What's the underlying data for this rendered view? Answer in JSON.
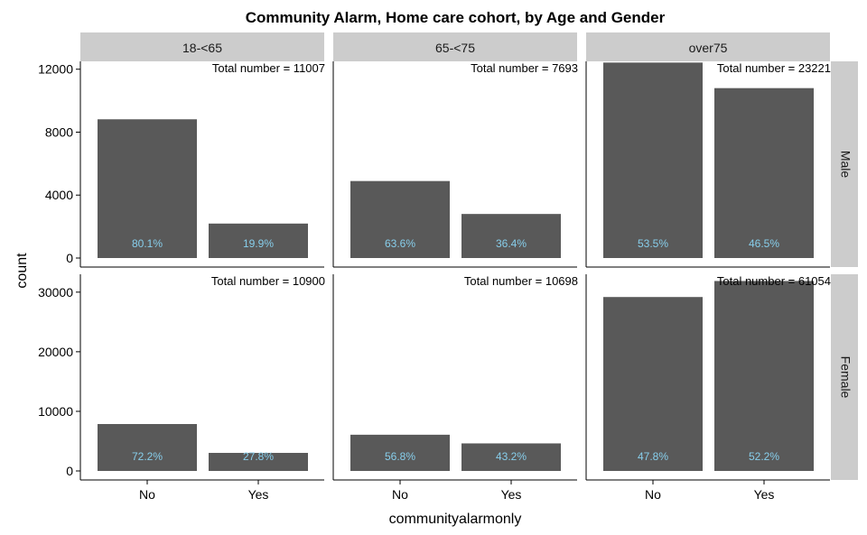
{
  "chart_data": {
    "type": "bar",
    "title": "Community Alarm, Home care cohort, by Age and Gender",
    "xlabel": "communityalarmonly",
    "ylabel": "count",
    "categories": [
      "No",
      "Yes"
    ],
    "bar_color": "#595959",
    "label_color": "#87CEEB",
    "strip_color": "#cccccc",
    "facet_cols": [
      "18-<65",
      "65-<75",
      "over75"
    ],
    "facet_rows": [
      {
        "name": "Male",
        "ylim": [
          0,
          12500
        ],
        "yticks": [
          0,
          4000,
          8000,
          12000
        ],
        "ytick_labels": [
          "0",
          "4000",
          "8000",
          "12000"
        ],
        "panels": [
          {
            "total_label": "Total number = 11007",
            "values": [
              8817,
              2190
            ],
            "pct_labels": [
              "80.1%",
              "19.9%"
            ]
          },
          {
            "total_label": "Total number = 7693",
            "values": [
              4893,
              2800
            ],
            "pct_labels": [
              "63.6%",
              "36.4%"
            ]
          },
          {
            "total_label": "Total number = 23221",
            "values": [
              12423,
              10798
            ],
            "pct_labels": [
              "53.5%",
              "46.5%"
            ]
          }
        ]
      },
      {
        "name": "Female",
        "ylim": [
          0,
          33000
        ],
        "yticks": [
          0,
          10000,
          20000,
          30000
        ],
        "ytick_labels": [
          "0",
          "10000",
          "20000",
          "30000"
        ],
        "panels": [
          {
            "total_label": "Total number = 10900",
            "values": [
              7870,
              3030
            ],
            "pct_labels": [
              "72.2%",
              "27.8%"
            ]
          },
          {
            "total_label": "Total number = 10698",
            "values": [
              6076,
              4622
            ],
            "pct_labels": [
              "56.8%",
              "43.2%"
            ]
          },
          {
            "total_label": "Total number = 61054",
            "values": [
              29184,
              31870
            ],
            "pct_labels": [
              "47.8%",
              "52.2%"
            ]
          }
        ]
      }
    ]
  }
}
